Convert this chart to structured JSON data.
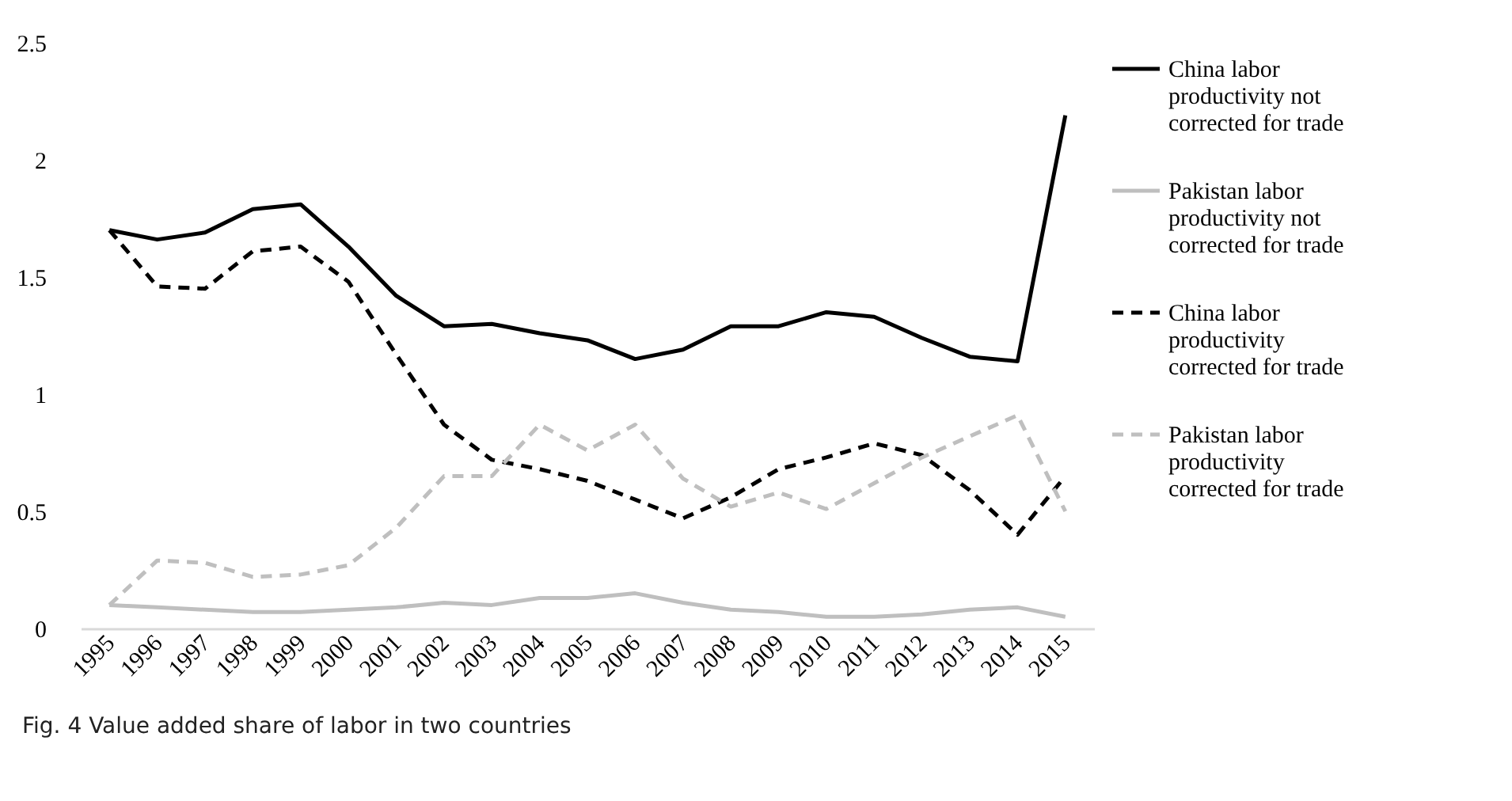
{
  "chart_data": {
    "type": "line",
    "categories": [
      "1995",
      "1996",
      "1997",
      "1998",
      "1999",
      "2000",
      "2001",
      "2002",
      "2003",
      "2004",
      "2005",
      "2006",
      "2007",
      "2008",
      "2009",
      "2010",
      "2011",
      "2012",
      "2013",
      "2014",
      "2015"
    ],
    "series": [
      {
        "name": "China labor productivity not corrected for trade",
        "color": "#000000",
        "line_style": "solid",
        "values": [
          1.7,
          1.66,
          1.69,
          1.79,
          1.81,
          1.63,
          1.42,
          1.29,
          1.3,
          1.26,
          1.23,
          1.15,
          1.19,
          1.29,
          1.29,
          1.35,
          1.33,
          1.24,
          1.16,
          1.14,
          2.19
        ]
      },
      {
        "name": "Pakistan labor productivity not corrected for trade",
        "color": "#bfbfbf",
        "line_style": "solid",
        "values": [
          0.1,
          0.09,
          0.08,
          0.07,
          0.07,
          0.08,
          0.09,
          0.11,
          0.1,
          0.13,
          0.13,
          0.15,
          0.11,
          0.08,
          0.07,
          0.05,
          0.05,
          0.06,
          0.08,
          0.09,
          0.05
        ]
      },
      {
        "name": "China labor productivity corrected for trade",
        "color": "#000000",
        "line_style": "dashed",
        "values": [
          1.7,
          1.46,
          1.45,
          1.61,
          1.63,
          1.48,
          1.17,
          0.87,
          0.72,
          0.68,
          0.63,
          0.55,
          0.47,
          0.56,
          0.68,
          0.73,
          0.79,
          0.74,
          0.59,
          0.4,
          0.65
        ]
      },
      {
        "name": "Pakistan labor productivity corrected for trade",
        "color": "#bfbfbf",
        "line_style": "dashed",
        "values": [
          0.1,
          0.29,
          0.28,
          0.22,
          0.23,
          0.27,
          0.43,
          0.65,
          0.65,
          0.87,
          0.76,
          0.87,
          0.64,
          0.52,
          0.58,
          0.51,
          0.62,
          0.73,
          0.82,
          0.91,
          0.5
        ]
      }
    ],
    "ylim": [
      0,
      2.5
    ],
    "yticks": [
      0,
      0.5,
      1,
      1.5,
      2,
      2.5
    ],
    "grid": false,
    "legend": "right",
    "marker": "none",
    "annotations": [
      "Fig. 4 Value added share of labor in two countries"
    ]
  }
}
